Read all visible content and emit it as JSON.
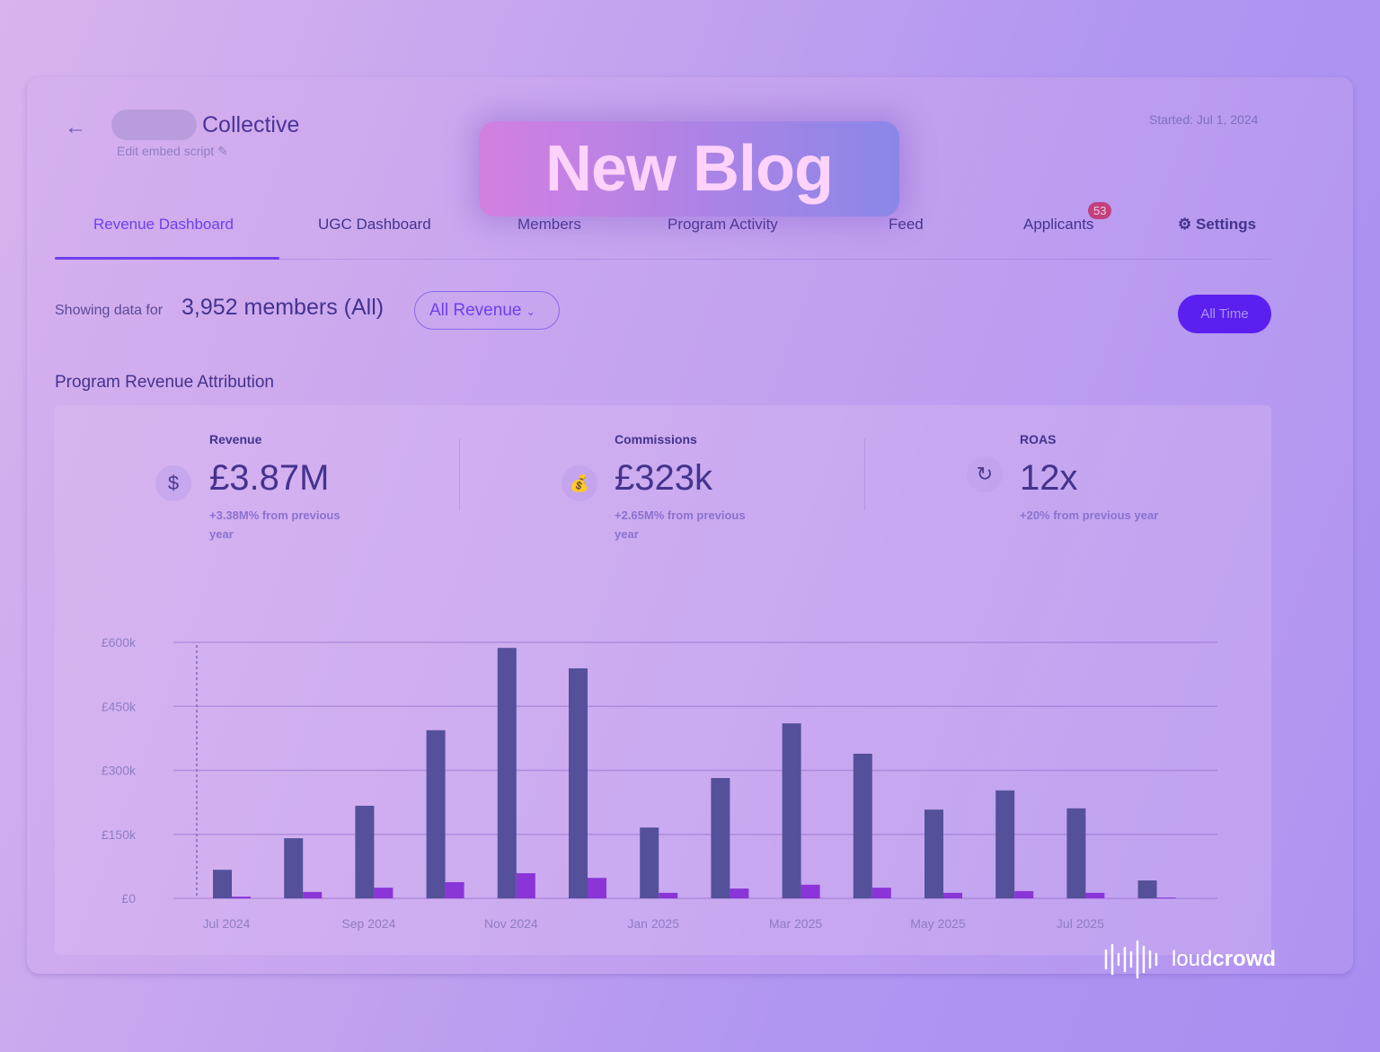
{
  "header": {
    "back_icon": "arrow-left-icon",
    "title": "Collective",
    "edit_link": "Edit embed script",
    "edit_icon": "pencil-icon",
    "started": "Started: Jul 1, 2024"
  },
  "tabs": [
    {
      "label": "Revenue Dashboard",
      "active": true
    },
    {
      "label": "UGC Dashboard"
    },
    {
      "label": "Members"
    },
    {
      "label": "Program Activity"
    },
    {
      "label": "Feed"
    },
    {
      "label": "Applicants",
      "badge": "53"
    },
    {
      "label": "Settings",
      "icon": "gear-icon"
    }
  ],
  "filter": {
    "showing_label": "Showing data for",
    "members": "3,952 members (All)",
    "dropdown": "All Revenue",
    "time_button": "All Time"
  },
  "section_title": "Program Revenue Attribution",
  "stats": [
    {
      "label": "Revenue",
      "value": "£3.87M",
      "sub": "+3.38M% from previous year",
      "icon": "dollar-icon"
    },
    {
      "label": "Commissions",
      "value": "£323k",
      "sub": "+2.65M% from previous year",
      "icon": "hand-money-icon"
    },
    {
      "label": "ROAS",
      "value": "12x",
      "sub": "+20% from previous year",
      "icon": "refresh-dollar-icon"
    }
  ],
  "overlay": {
    "banner": "New Blog",
    "logo": "loudcrowd"
  },
  "colors": {
    "accent": "#6d3ff0",
    "revenue_bar": "#55509a",
    "commission_bar": "#8a35d8",
    "badge": "#c2407c"
  },
  "chart_data": {
    "type": "bar",
    "categories": [
      "Jul 2024",
      "Aug 2024",
      "Sep 2024",
      "Oct 2024",
      "Nov 2024",
      "Dec 2024",
      "Jan 2025",
      "Feb 2025",
      "Mar 2025",
      "Apr 2025",
      "May 2025",
      "Jun 2025",
      "Jul 2025",
      "Aug 2025"
    ],
    "x_tick_labels": [
      "Jul 2024",
      "Sep 2024",
      "Nov 2024",
      "Jan 2025",
      "Mar 2025",
      "May 2025",
      "Jul 2025"
    ],
    "y_tick_labels": [
      "£0",
      "£150k",
      "£300k",
      "£450k",
      "£600k"
    ],
    "ylim": [
      0,
      600000
    ],
    "grid": true,
    "series": [
      {
        "values": [
          67000,
          141000,
          217000,
          394000,
          587000,
          539000,
          166000,
          282000,
          410000,
          339000,
          208000,
          253000,
          211000,
          42000
        ]
      },
      {
        "values": [
          4000,
          15000,
          25000,
          38000,
          59000,
          48000,
          13000,
          23000,
          32000,
          25000,
          13000,
          17000,
          13000,
          2000
        ]
      }
    ]
  }
}
